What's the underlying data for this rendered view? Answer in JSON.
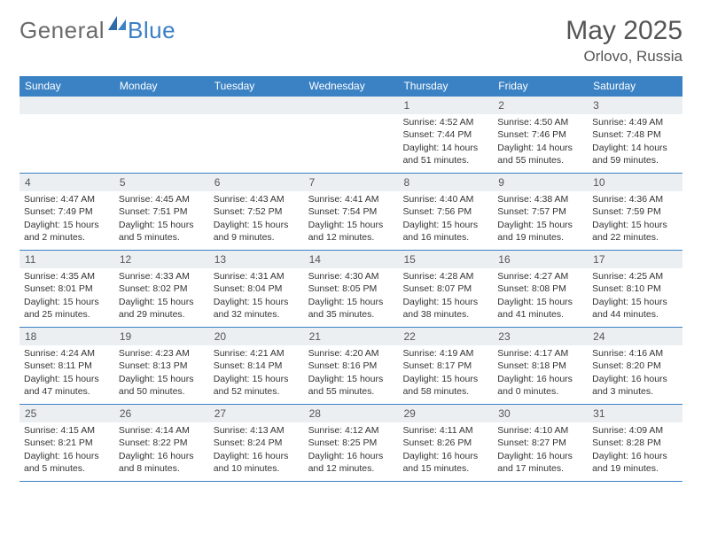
{
  "logo": {
    "text1": "General",
    "text2": "Blue"
  },
  "title": "May 2025",
  "location": "Orlovo, Russia",
  "colors": {
    "header_bar": "#3b82c4",
    "daynum_bg": "#eceff1",
    "rule": "#3b82c4",
    "text": "#333333",
    "title_text": "#555555"
  },
  "weekdays": [
    "Sunday",
    "Monday",
    "Tuesday",
    "Wednesday",
    "Thursday",
    "Friday",
    "Saturday"
  ],
  "weeks": [
    [
      {
        "n": "",
        "sr": "",
        "ss": "",
        "dl": ""
      },
      {
        "n": "",
        "sr": "",
        "ss": "",
        "dl": ""
      },
      {
        "n": "",
        "sr": "",
        "ss": "",
        "dl": ""
      },
      {
        "n": "",
        "sr": "",
        "ss": "",
        "dl": ""
      },
      {
        "n": "1",
        "sr": "Sunrise: 4:52 AM",
        "ss": "Sunset: 7:44 PM",
        "dl": "Daylight: 14 hours and 51 minutes."
      },
      {
        "n": "2",
        "sr": "Sunrise: 4:50 AM",
        "ss": "Sunset: 7:46 PM",
        "dl": "Daylight: 14 hours and 55 minutes."
      },
      {
        "n": "3",
        "sr": "Sunrise: 4:49 AM",
        "ss": "Sunset: 7:48 PM",
        "dl": "Daylight: 14 hours and 59 minutes."
      }
    ],
    [
      {
        "n": "4",
        "sr": "Sunrise: 4:47 AM",
        "ss": "Sunset: 7:49 PM",
        "dl": "Daylight: 15 hours and 2 minutes."
      },
      {
        "n": "5",
        "sr": "Sunrise: 4:45 AM",
        "ss": "Sunset: 7:51 PM",
        "dl": "Daylight: 15 hours and 5 minutes."
      },
      {
        "n": "6",
        "sr": "Sunrise: 4:43 AM",
        "ss": "Sunset: 7:52 PM",
        "dl": "Daylight: 15 hours and 9 minutes."
      },
      {
        "n": "7",
        "sr": "Sunrise: 4:41 AM",
        "ss": "Sunset: 7:54 PM",
        "dl": "Daylight: 15 hours and 12 minutes."
      },
      {
        "n": "8",
        "sr": "Sunrise: 4:40 AM",
        "ss": "Sunset: 7:56 PM",
        "dl": "Daylight: 15 hours and 16 minutes."
      },
      {
        "n": "9",
        "sr": "Sunrise: 4:38 AM",
        "ss": "Sunset: 7:57 PM",
        "dl": "Daylight: 15 hours and 19 minutes."
      },
      {
        "n": "10",
        "sr": "Sunrise: 4:36 AM",
        "ss": "Sunset: 7:59 PM",
        "dl": "Daylight: 15 hours and 22 minutes."
      }
    ],
    [
      {
        "n": "11",
        "sr": "Sunrise: 4:35 AM",
        "ss": "Sunset: 8:01 PM",
        "dl": "Daylight: 15 hours and 25 minutes."
      },
      {
        "n": "12",
        "sr": "Sunrise: 4:33 AM",
        "ss": "Sunset: 8:02 PM",
        "dl": "Daylight: 15 hours and 29 minutes."
      },
      {
        "n": "13",
        "sr": "Sunrise: 4:31 AM",
        "ss": "Sunset: 8:04 PM",
        "dl": "Daylight: 15 hours and 32 minutes."
      },
      {
        "n": "14",
        "sr": "Sunrise: 4:30 AM",
        "ss": "Sunset: 8:05 PM",
        "dl": "Daylight: 15 hours and 35 minutes."
      },
      {
        "n": "15",
        "sr": "Sunrise: 4:28 AM",
        "ss": "Sunset: 8:07 PM",
        "dl": "Daylight: 15 hours and 38 minutes."
      },
      {
        "n": "16",
        "sr": "Sunrise: 4:27 AM",
        "ss": "Sunset: 8:08 PM",
        "dl": "Daylight: 15 hours and 41 minutes."
      },
      {
        "n": "17",
        "sr": "Sunrise: 4:25 AM",
        "ss": "Sunset: 8:10 PM",
        "dl": "Daylight: 15 hours and 44 minutes."
      }
    ],
    [
      {
        "n": "18",
        "sr": "Sunrise: 4:24 AM",
        "ss": "Sunset: 8:11 PM",
        "dl": "Daylight: 15 hours and 47 minutes."
      },
      {
        "n": "19",
        "sr": "Sunrise: 4:23 AM",
        "ss": "Sunset: 8:13 PM",
        "dl": "Daylight: 15 hours and 50 minutes."
      },
      {
        "n": "20",
        "sr": "Sunrise: 4:21 AM",
        "ss": "Sunset: 8:14 PM",
        "dl": "Daylight: 15 hours and 52 minutes."
      },
      {
        "n": "21",
        "sr": "Sunrise: 4:20 AM",
        "ss": "Sunset: 8:16 PM",
        "dl": "Daylight: 15 hours and 55 minutes."
      },
      {
        "n": "22",
        "sr": "Sunrise: 4:19 AM",
        "ss": "Sunset: 8:17 PM",
        "dl": "Daylight: 15 hours and 58 minutes."
      },
      {
        "n": "23",
        "sr": "Sunrise: 4:17 AM",
        "ss": "Sunset: 8:18 PM",
        "dl": "Daylight: 16 hours and 0 minutes."
      },
      {
        "n": "24",
        "sr": "Sunrise: 4:16 AM",
        "ss": "Sunset: 8:20 PM",
        "dl": "Daylight: 16 hours and 3 minutes."
      }
    ],
    [
      {
        "n": "25",
        "sr": "Sunrise: 4:15 AM",
        "ss": "Sunset: 8:21 PM",
        "dl": "Daylight: 16 hours and 5 minutes."
      },
      {
        "n": "26",
        "sr": "Sunrise: 4:14 AM",
        "ss": "Sunset: 8:22 PM",
        "dl": "Daylight: 16 hours and 8 minutes."
      },
      {
        "n": "27",
        "sr": "Sunrise: 4:13 AM",
        "ss": "Sunset: 8:24 PM",
        "dl": "Daylight: 16 hours and 10 minutes."
      },
      {
        "n": "28",
        "sr": "Sunrise: 4:12 AM",
        "ss": "Sunset: 8:25 PM",
        "dl": "Daylight: 16 hours and 12 minutes."
      },
      {
        "n": "29",
        "sr": "Sunrise: 4:11 AM",
        "ss": "Sunset: 8:26 PM",
        "dl": "Daylight: 16 hours and 15 minutes."
      },
      {
        "n": "30",
        "sr": "Sunrise: 4:10 AM",
        "ss": "Sunset: 8:27 PM",
        "dl": "Daylight: 16 hours and 17 minutes."
      },
      {
        "n": "31",
        "sr": "Sunrise: 4:09 AM",
        "ss": "Sunset: 8:28 PM",
        "dl": "Daylight: 16 hours and 19 minutes."
      }
    ]
  ]
}
